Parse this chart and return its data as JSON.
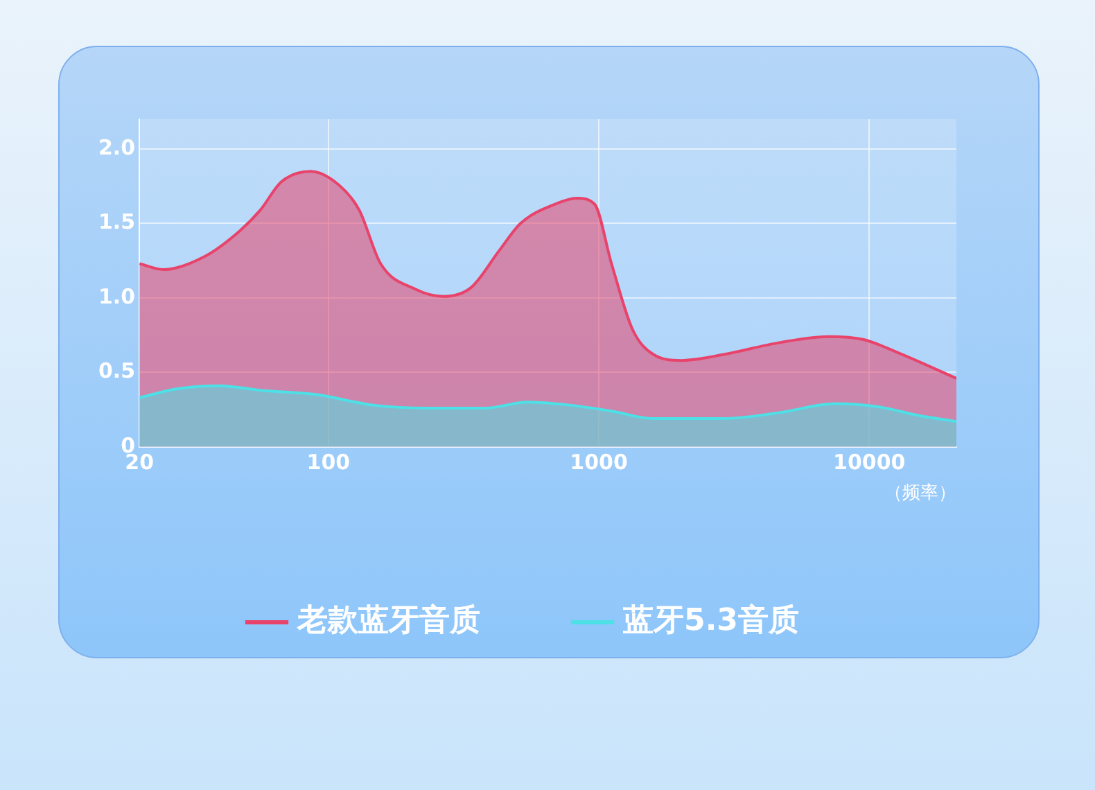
{
  "chart_data": {
    "type": "area",
    "xlabel": "（频率）",
    "log": "x",
    "grid": true,
    "legend": "bottom",
    "marker": "none",
    "xlim": [
      20,
      21000
    ],
    "xticks": [
      20,
      100,
      1000,
      10000
    ],
    "ylim": [
      0,
      2.2
    ],
    "yticks": [
      0,
      0.5,
      {
        "value": 1,
        "label": "1.0"
      },
      1.5,
      {
        "value": 2,
        "label": "2.0"
      }
    ],
    "series": [
      {
        "name": "老款蓝牙音质",
        "color": "#e8436a",
        "x": [
          20,
          24.5,
          35,
          47,
          56,
          67,
          86,
          109,
          130,
          156,
          209,
          266,
          337,
          429,
          513,
          690,
          826,
          964,
          1114,
          1331,
          1592,
          2023,
          2891,
          4657,
          7079,
          9528,
          12850,
          21000
        ],
        "values": [
          1.23,
          1.19,
          1.28,
          1.45,
          1.59,
          1.78,
          1.85,
          1.76,
          1.59,
          1.23,
          1.06,
          1.01,
          1.07,
          1.32,
          1.5,
          1.63,
          1.67,
          1.63,
          1.23,
          0.79,
          0.62,
          0.58,
          0.62,
          0.7,
          0.74,
          0.72,
          0.63,
          0.46
        ]
      },
      {
        "name": "蓝牙5.3音质",
        "color": "#4de0e6",
        "x": [
          20,
          27.6,
          39.5,
          56,
          91,
          146,
          236,
          380,
          545,
          780,
          1114,
          1592,
          2891,
          4657,
          7480,
          10700,
          15300,
          21000
        ],
        "values": [
          0.33,
          0.39,
          0.41,
          0.38,
          0.35,
          0.28,
          0.26,
          0.26,
          0.3,
          0.28,
          0.24,
          0.19,
          0.19,
          0.23,
          0.29,
          0.27,
          0.21,
          0.17
        ]
      }
    ]
  }
}
